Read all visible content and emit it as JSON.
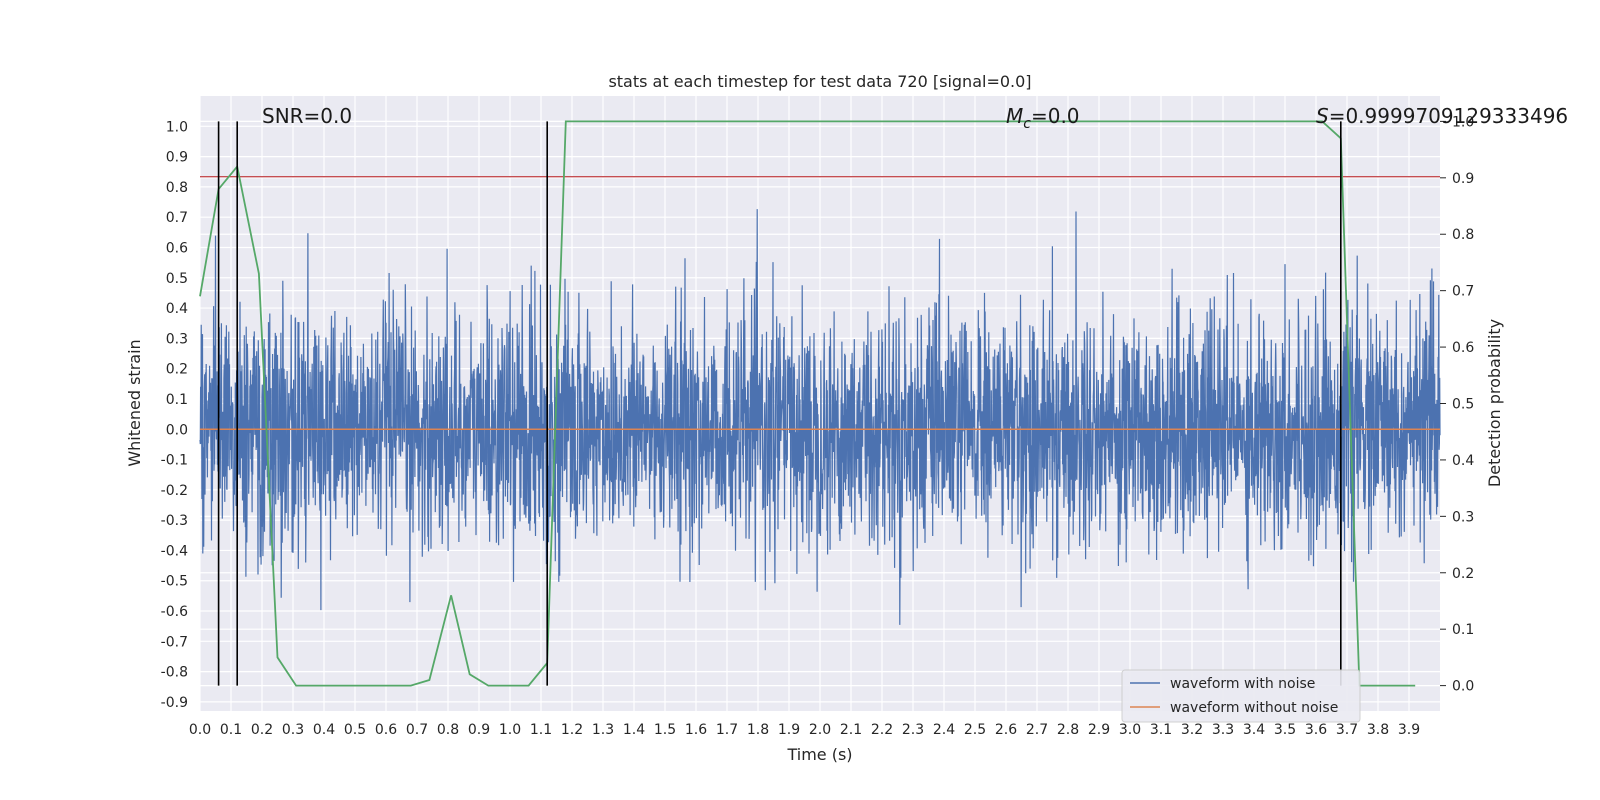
{
  "chart_data": {
    "type": "line",
    "title": "stats at each timestep for test data 720 [signal=0.0]",
    "xlabel": "Time (s)",
    "ylabel": "Whitened strain",
    "y2label": "Detection probability",
    "xlim": [
      0.0,
      4.0
    ],
    "ylim": [
      -0.93,
      1.1
    ],
    "y2lim": [
      -0.045,
      1.045
    ],
    "xticks": [
      "0.0",
      "0.1",
      "0.2",
      "0.3",
      "0.4",
      "0.5",
      "0.6",
      "0.7",
      "0.8",
      "0.9",
      "1.0",
      "1.1",
      "1.2",
      "1.3",
      "1.4",
      "1.5",
      "1.6",
      "1.7",
      "1.8",
      "1.9",
      "2.0",
      "2.1",
      "2.2",
      "2.3",
      "2.4",
      "2.5",
      "2.6",
      "2.7",
      "2.8",
      "2.9",
      "3.0",
      "3.1",
      "3.2",
      "3.3",
      "3.4",
      "3.5",
      "3.6",
      "3.7",
      "3.8",
      "3.9"
    ],
    "yticks": [
      "1.0",
      "0.9",
      "0.8",
      "0.7",
      "0.6",
      "0.5",
      "0.4",
      "0.3",
      "0.2",
      "0.1",
      "0.0",
      "-0.1",
      "-0.2",
      "-0.3",
      "-0.4",
      "-0.5",
      "-0.6",
      "-0.7",
      "-0.8",
      "-0.9"
    ],
    "y2ticks": [
      "1.0",
      "0.9",
      "0.8",
      "0.7",
      "0.6",
      "0.5",
      "0.4",
      "0.3",
      "0.2",
      "0.1",
      "0.0"
    ],
    "grid": true,
    "legend_placement": "lower-right",
    "annotations": {
      "snr": "SNR=0.0",
      "mc_symbol": "M",
      "mc_sub": "c",
      "mc_value": "=0.0",
      "s_symbol": "S",
      "s_value": "=0.9999709129333496"
    },
    "series": [
      {
        "name": "waveform with noise",
        "color": "#4c72b0",
        "kind": "noise",
        "sample_count": 4000,
        "visible_range": [
          -0.82,
          1.0
        ],
        "core_amplitude_range": [
          -0.28,
          0.27
        ]
      },
      {
        "name": "waveform without noise",
        "color": "#dd8452",
        "kind": "constant",
        "value": 0.0
      },
      {
        "axis": "y2",
        "color": "#55a868",
        "kind": "line",
        "x": [
          0.0,
          0.06,
          0.12,
          0.19,
          0.25,
          0.31,
          0.43,
          0.55,
          0.68,
          0.74,
          0.81,
          0.87,
          0.93,
          1.06,
          1.12,
          1.18,
          1.3,
          3.62,
          3.68,
          3.74,
          3.8,
          3.92
        ],
        "y": [
          0.69,
          0.88,
          0.92,
          0.73,
          0.05,
          0.0,
          0.0,
          0.0,
          0.0,
          0.01,
          0.16,
          0.02,
          0.0,
          0.0,
          0.04,
          1.0,
          1.0,
          1.0,
          0.97,
          0.0,
          0.0,
          0.0
        ]
      }
    ],
    "hlines": [
      {
        "axis": "y2",
        "value": 0.902,
        "color": "#c44e52"
      }
    ],
    "vlines": [
      {
        "x": 0.06,
        "color": "#000000"
      },
      {
        "x": 0.12,
        "color": "#000000"
      },
      {
        "x": 1.12,
        "color": "#000000"
      },
      {
        "x": 3.68,
        "color": "#000000"
      }
    ],
    "colors": {
      "axes_bg": "#eaeaf2",
      "grid": "#ffffff"
    }
  }
}
